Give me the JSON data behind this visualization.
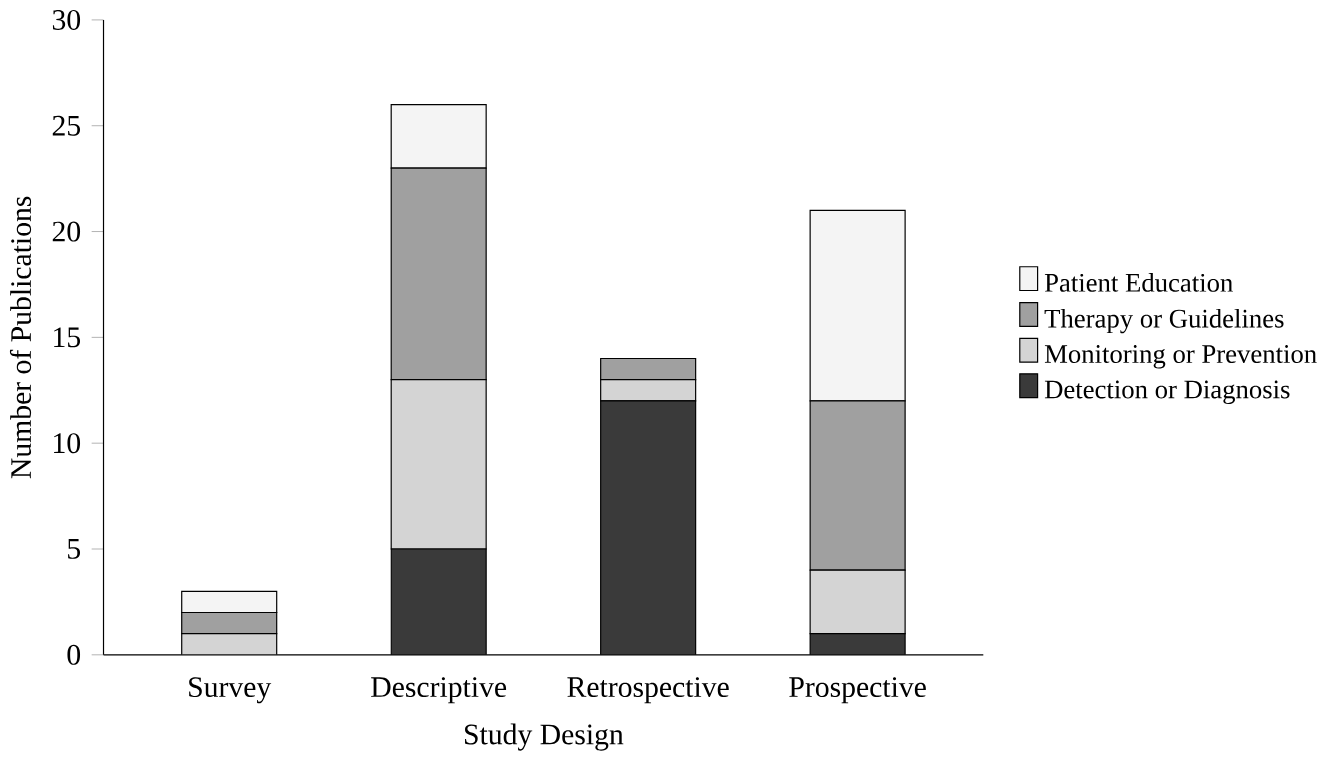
{
  "chart_data": {
    "type": "bar",
    "stacked": true,
    "xlabel": "Study Design",
    "ylabel": "Number of Publications",
    "categories": [
      "Survey",
      "Descriptive",
      "Retrospective",
      "Prospective"
    ],
    "series": [
      {
        "name": "Detection or Diagnosis",
        "color": "#3a3a3a",
        "values": [
          0,
          5,
          12,
          1
        ]
      },
      {
        "name": "Monitoring or Prevention",
        "color": "#d4d4d4",
        "values": [
          1,
          8,
          1,
          3
        ]
      },
      {
        "name": "Therapy or Guidelines",
        "color": "#a0a0a0",
        "values": [
          1,
          10,
          1,
          8
        ]
      },
      {
        "name": "Patient Education",
        "color": "#f4f4f4",
        "values": [
          1,
          3,
          0,
          9
        ]
      }
    ],
    "ylim": [
      0,
      30
    ],
    "yticks": [
      0,
      5,
      10,
      15,
      20,
      25,
      30
    ],
    "legend": "right",
    "grid": false
  }
}
